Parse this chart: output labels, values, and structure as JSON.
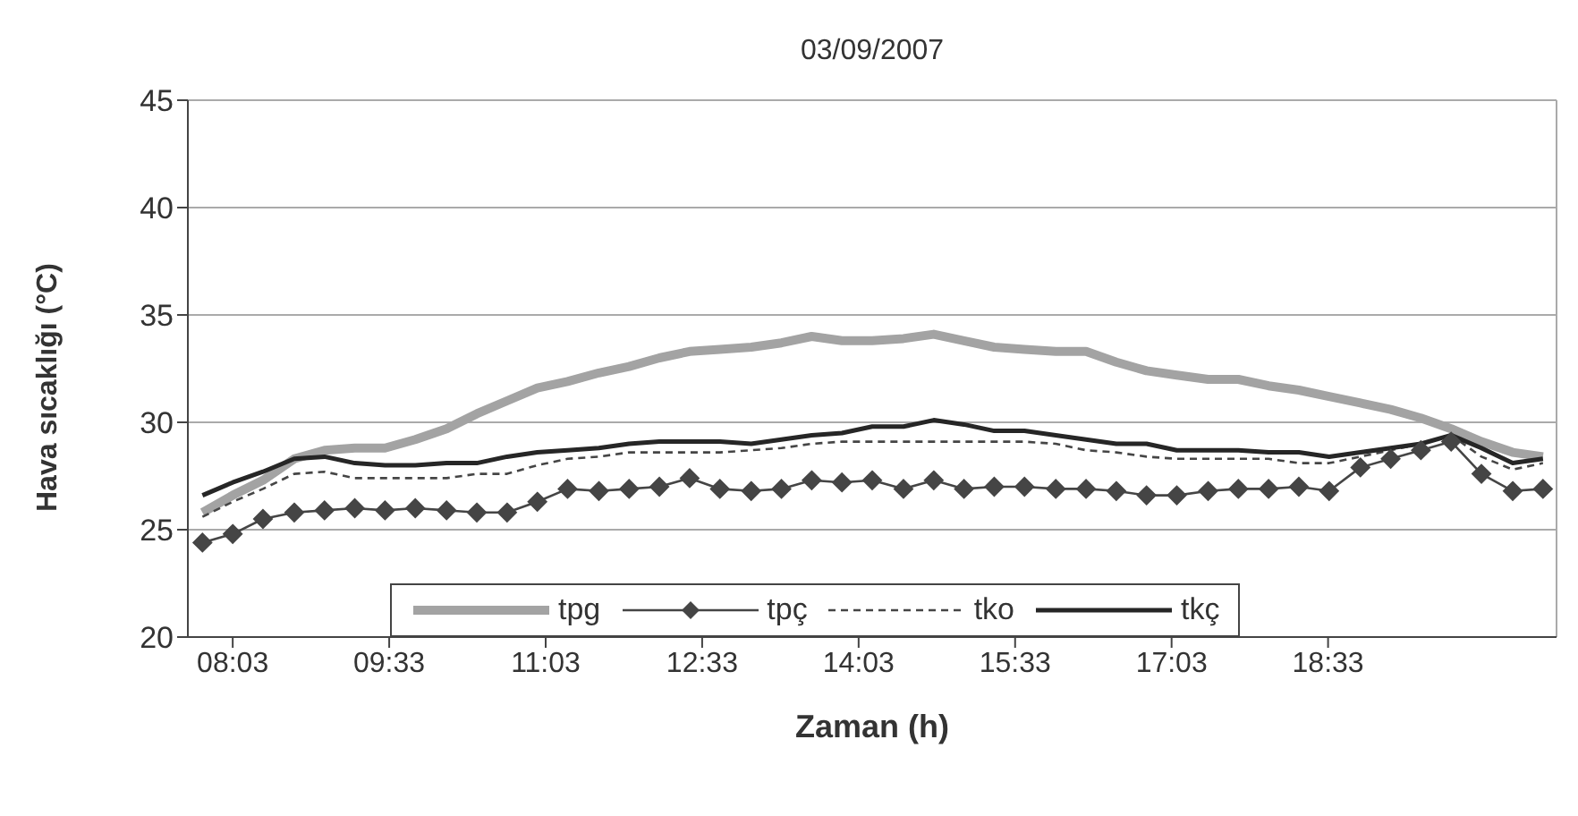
{
  "chart_data": {
    "type": "line",
    "title": "03/09/2007",
    "xlabel": "Zaman (h)",
    "ylabel": "Hava sıcaklığı (°C)",
    "x": [
      7.76,
      8.05,
      8.34,
      8.64,
      8.93,
      9.22,
      9.51,
      9.8,
      10.1,
      10.39,
      10.68,
      10.97,
      11.26,
      11.56,
      11.85,
      12.14,
      12.43,
      12.72,
      13.02,
      13.31,
      13.6,
      13.89,
      14.18,
      14.48,
      14.77,
      15.06,
      15.35,
      15.64,
      15.94,
      16.23,
      16.52,
      16.81,
      17.1,
      17.4,
      17.69,
      17.98,
      18.27,
      18.56,
      18.86,
      19.15,
      19.44,
      19.73,
      20.02,
      20.32,
      20.61
    ],
    "xlim": [
      7.62,
      20.74
    ],
    "xticks": [
      {
        "value": 8.05,
        "label": "08:03"
      },
      {
        "value": 9.55,
        "label": "09:33"
      },
      {
        "value": 11.05,
        "label": "11:03"
      },
      {
        "value": 12.55,
        "label": "12:33"
      },
      {
        "value": 14.05,
        "label": "14:03"
      },
      {
        "value": 15.55,
        "label": "15:33"
      },
      {
        "value": 17.05,
        "label": "17:03"
      },
      {
        "value": 18.55,
        "label": "18:33"
      }
    ],
    "ylim": [
      20,
      45
    ],
    "yticks": [
      20,
      25,
      30,
      35,
      40,
      45
    ],
    "grid": "y",
    "legend": "bottom",
    "series": [
      {
        "name": "tpg",
        "color": "#a3a3a3",
        "marker": "none",
        "line_style": "solid",
        "values": [
          25.8,
          26.6,
          27.3,
          28.3,
          28.7,
          28.8,
          28.8,
          29.2,
          29.7,
          30.4,
          31.0,
          31.6,
          31.9,
          32.3,
          32.6,
          33.0,
          33.3,
          33.4,
          33.5,
          33.7,
          34.0,
          33.8,
          33.8,
          33.9,
          34.1,
          33.8,
          33.5,
          33.4,
          33.3,
          33.3,
          32.8,
          32.4,
          32.2,
          32.0,
          32.0,
          31.7,
          31.5,
          31.2,
          30.9,
          30.6,
          30.2,
          29.7,
          29.1,
          28.6,
          28.4
        ]
      },
      {
        "name": "tpç",
        "color": "#454545",
        "marker": "diamond",
        "line_style": "solid",
        "values": [
          24.4,
          24.8,
          25.5,
          25.8,
          25.9,
          26.0,
          25.9,
          26.0,
          25.9,
          25.8,
          25.8,
          26.3,
          26.9,
          26.8,
          26.9,
          27.0,
          27.4,
          26.9,
          26.8,
          26.9,
          27.3,
          27.2,
          27.3,
          26.9,
          27.3,
          26.9,
          27.0,
          27.0,
          26.9,
          26.9,
          26.8,
          26.6,
          26.6,
          26.8,
          26.9,
          26.9,
          27.0,
          26.8,
          27.9,
          28.3,
          28.7,
          29.1,
          27.6,
          26.8,
          26.9
        ]
      },
      {
        "name": "tko",
        "color": "#454545",
        "marker": "none",
        "line_style": "dashed",
        "values": [
          25.6,
          26.3,
          26.9,
          27.6,
          27.7,
          27.4,
          27.4,
          27.4,
          27.4,
          27.6,
          27.6,
          28.0,
          28.3,
          28.4,
          28.6,
          28.6,
          28.6,
          28.6,
          28.7,
          28.8,
          29.0,
          29.1,
          29.1,
          29.1,
          29.1,
          29.1,
          29.1,
          29.1,
          29.0,
          28.7,
          28.6,
          28.4,
          28.3,
          28.3,
          28.3,
          28.3,
          28.1,
          28.1,
          28.4,
          28.7,
          29.0,
          29.4,
          28.4,
          27.8,
          28.1
        ]
      },
      {
        "name": "tkç",
        "color": "#262626",
        "marker": "none",
        "line_style": "solid",
        "values": [
          26.6,
          27.2,
          27.7,
          28.3,
          28.4,
          28.1,
          28.0,
          28.0,
          28.1,
          28.1,
          28.4,
          28.6,
          28.7,
          28.8,
          29.0,
          29.1,
          29.1,
          29.1,
          29.0,
          29.2,
          29.4,
          29.5,
          29.8,
          29.8,
          30.1,
          29.9,
          29.6,
          29.6,
          29.4,
          29.2,
          29.0,
          29.0,
          28.7,
          28.7,
          28.7,
          28.6,
          28.6,
          28.4,
          28.6,
          28.8,
          29.0,
          29.4,
          28.8,
          28.1,
          28.3
        ]
      }
    ]
  }
}
